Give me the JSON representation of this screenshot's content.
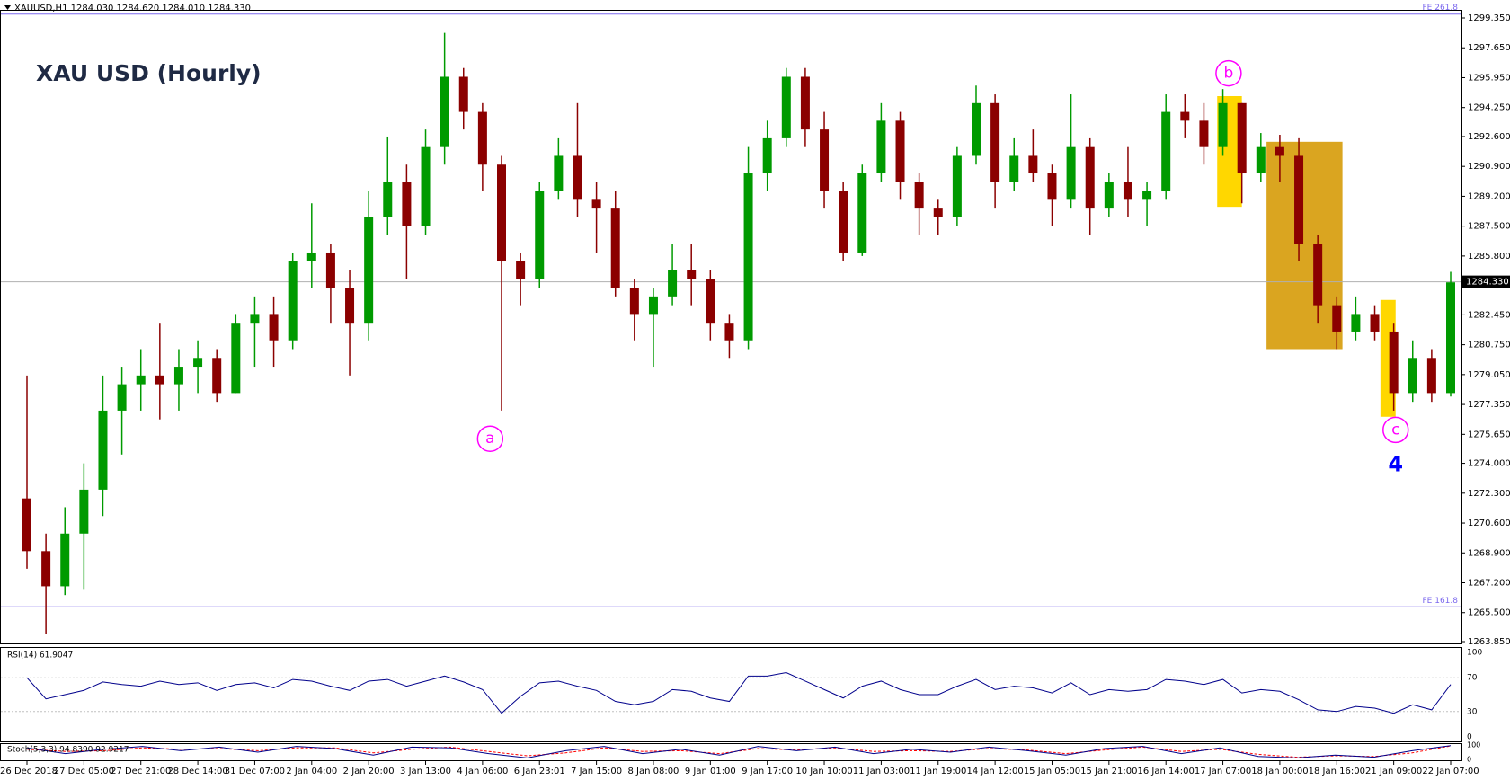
{
  "chart_data": {
    "type": "candlestick",
    "title": "XAU USD (Hourly)",
    "header": "XAUUSD,H1  1284.030 1284.620 1284.010 1284.330",
    "up_color": "#009a00",
    "down_color": "#8b0000",
    "open": [
      1272,
      1269,
      1267,
      1270,
      1272.5,
      1277,
      1278.5,
      1279,
      1278.5,
      1279.5,
      1280,
      1278,
      1282,
      1282.5,
      1281,
      1285.5,
      1286,
      1284,
      1282,
      1288,
      1290,
      1287.5,
      1292,
      1296,
      1294,
      1291,
      1285.5,
      1284.5,
      1289.5,
      1291.5,
      1289,
      1288.5,
      1284,
      1282.5,
      1283.5,
      1285,
      1284.5,
      1282,
      1281,
      1290.5,
      1292.5,
      1296,
      1293,
      1289.5,
      1286,
      1290.5,
      1293.5,
      1290,
      1288.5,
      1288,
      1291.5,
      1294.5,
      1290,
      1291.5,
      1290.5,
      1289,
      1292,
      1288.5,
      1290,
      1289,
      1289.5,
      1294,
      1293.5,
      1292,
      1294.5,
      1290.5,
      1292,
      1291.5,
      1286.5,
      1283,
      1281.5,
      1282.5,
      1281.5,
      1278,
      1280,
      1278
    ],
    "high": [
      1279,
      1270,
      1271.5,
      1274,
      1279,
      1279.5,
      1280.5,
      1282,
      1280.5,
      1281,
      1280.5,
      1282.5,
      1283.5,
      1283.5,
      1286,
      1288.8,
      1286.5,
      1285,
      1289.5,
      1292.6,
      1291,
      1293,
      1298.5,
      1296.5,
      1294.5,
      1291.5,
      1286,
      1290,
      1292.5,
      1294.5,
      1290,
      1289.5,
      1284.5,
      1284,
      1286.5,
      1286.5,
      1285,
      1282.5,
      1292,
      1293.5,
      1296.5,
      1296.5,
      1294,
      1290,
      1291,
      1294.5,
      1294,
      1290.5,
      1289,
      1292,
      1295.5,
      1295,
      1292.5,
      1293,
      1291,
      1295,
      1292.5,
      1290.5,
      1292,
      1290,
      1295,
      1295,
      1294.5,
      1295.3,
      1294.5,
      1292.8,
      1292.7,
      1292.5,
      1287,
      1283.5,
      1283.5,
      1283,
      1282,
      1281,
      1280.5,
      1284.9
    ],
    "low": [
      1268,
      1264.3,
      1266.5,
      1266.8,
      1271,
      1274.5,
      1277,
      1276.5,
      1277,
      1278,
      1277.5,
      1278,
      1279.5,
      1279.5,
      1280.5,
      1284,
      1282,
      1279,
      1281,
      1287,
      1284.5,
      1287,
      1291,
      1293,
      1289.5,
      1277,
      1283,
      1284,
      1289,
      1288,
      1286,
      1283.5,
      1281,
      1279.5,
      1283,
      1283,
      1281,
      1280,
      1280.5,
      1289.5,
      1292,
      1292,
      1288.5,
      1285.5,
      1285.8,
      1290,
      1289,
      1287,
      1287,
      1287.5,
      1291,
      1288.5,
      1289.5,
      1290,
      1287.5,
      1288.5,
      1287,
      1288,
      1288,
      1287.5,
      1289,
      1292.5,
      1291,
      1291.5,
      1288.8,
      1290,
      1290,
      1285.5,
      1282,
      1280.5,
      1281,
      1281,
      1277,
      1277.5,
      1277.5,
      1277.8
    ],
    "close": [
      1269,
      1267,
      1270,
      1272.5,
      1277,
      1278.5,
      1279,
      1278.5,
      1279.5,
      1280,
      1278,
      1282,
      1282.5,
      1281,
      1285.5,
      1286,
      1284,
      1282,
      1288,
      1290,
      1287.5,
      1292,
      1296,
      1294,
      1291,
      1285.5,
      1284.5,
      1289.5,
      1291.5,
      1289,
      1288.5,
      1284,
      1282.5,
      1283.5,
      1285,
      1284.5,
      1282,
      1281,
      1290.5,
      1292.5,
      1296,
      1293,
      1289.5,
      1286,
      1290.5,
      1293.5,
      1290,
      1288.5,
      1288,
      1291.5,
      1294.5,
      1290,
      1291.5,
      1290.5,
      1289,
      1292,
      1288.5,
      1290,
      1289,
      1289.5,
      1294,
      1293.5,
      1292,
      1294.5,
      1290.5,
      1292,
      1291.5,
      1286.5,
      1283,
      1281.5,
      1282.5,
      1281.5,
      1278,
      1280,
      1278,
      1284.3
    ],
    "ylim": [
      1263.85,
      1299.35
    ],
    "yticks": [
      {
        "value": 1299.35,
        "label": "1299.350"
      },
      {
        "value": 1297.65,
        "label": "1297.650"
      },
      {
        "value": 1295.95,
        "label": "1295.950"
      },
      {
        "value": 1294.25,
        "label": "1294.250"
      },
      {
        "value": 1292.6,
        "label": "1292.600"
      },
      {
        "value": 1290.9,
        "label": "1290.900"
      },
      {
        "value": 1289.2,
        "label": "1289.200"
      },
      {
        "value": 1287.5,
        "label": "1287.500"
      },
      {
        "value": 1285.8,
        "label": "1285.800"
      },
      {
        "value": 1282.45,
        "label": "1282.450"
      },
      {
        "value": 1280.75,
        "label": "1280.750"
      },
      {
        "value": 1279.05,
        "label": "1279.050"
      },
      {
        "value": 1277.35,
        "label": "1277.350"
      },
      {
        "value": 1275.65,
        "label": "1275.650"
      },
      {
        "value": 1274,
        "label": "1274.000"
      },
      {
        "value": 1272.3,
        "label": "1272.300"
      },
      {
        "value": 1270.6,
        "label": "1270.600"
      },
      {
        "value": 1268.9,
        "label": "1268.900"
      },
      {
        "value": 1267.2,
        "label": "1267.200"
      },
      {
        "value": 1265.5,
        "label": "1265.500"
      },
      {
        "value": 1263.85,
        "label": "1263.850"
      }
    ],
    "xticks": [
      {
        "value": 0,
        "label": "26 Dec 2018"
      },
      {
        "value": 3,
        "label": "27 Dec 05:00"
      },
      {
        "value": 6,
        "label": "27 Dec 21:00"
      },
      {
        "value": 9,
        "label": "28 Dec 14:00"
      },
      {
        "value": 12,
        "label": "31 Dec 07:00"
      },
      {
        "value": 15,
        "label": "2 Jan 04:00"
      },
      {
        "value": 18,
        "label": "2 Jan 20:00"
      },
      {
        "value": 21,
        "label": "3 Jan 13:00"
      },
      {
        "value": 24,
        "label": "4 Jan 06:00"
      },
      {
        "value": 27,
        "label": "6 Jan 23:01"
      },
      {
        "value": 30,
        "label": "7 Jan 15:00"
      },
      {
        "value": 33,
        "label": "8 Jan 08:00"
      },
      {
        "value": 36,
        "label": "9 Jan 01:00"
      },
      {
        "value": 39,
        "label": "9 Jan 17:00"
      },
      {
        "value": 42,
        "label": "10 Jan 10:00"
      },
      {
        "value": 45,
        "label": "11 Jan 03:00"
      },
      {
        "value": 48,
        "label": "11 Jan 19:00"
      },
      {
        "value": 51,
        "label": "14 Jan 12:00"
      },
      {
        "value": 54,
        "label": "15 Jan 05:00"
      },
      {
        "value": 57,
        "label": "15 Jan 21:00"
      },
      {
        "value": 60,
        "label": "16 Jan 14:00"
      },
      {
        "value": 63,
        "label": "17 Jan 07:00"
      },
      {
        "value": 66,
        "label": "18 Jan 00:00"
      },
      {
        "value": 69,
        "label": "18 Jan 16:00"
      },
      {
        "value": 72,
        "label": "21 Jan 09:00"
      },
      {
        "value": 75,
        "label": "22 Jan 07:00"
      }
    ],
    "last": {
      "value": 1284.33,
      "label": "1284.330"
    },
    "levels": [
      {
        "label": "FE 261.8",
        "value": 1299.57,
        "color": "#7b68ee"
      },
      {
        "label": "FE 161.8",
        "value": 1265.83,
        "color": "#7b68ee"
      }
    ],
    "zones": [
      {
        "from": 62.7,
        "to": 64.0,
        "top": 1294.9,
        "bottom": 1288.6,
        "color": "#ffd700"
      },
      {
        "from": 65.3,
        "to": 69.3,
        "top": 1292.3,
        "bottom": 1280.5,
        "color": "#daa520"
      },
      {
        "from": 71.3,
        "to": 72.1,
        "top": 1283.3,
        "bottom": 1276.65,
        "color": "#ffd700"
      }
    ],
    "annotations": [
      {
        "text": "a",
        "x": 24.4,
        "price": 1275.4,
        "style": "circle",
        "color": "#ff00ff"
      },
      {
        "text": "b",
        "x": 63.3,
        "price": 1296.2,
        "style": "circle",
        "color": "#ff00ff"
      },
      {
        "text": "c",
        "x": 72.1,
        "price": 1275.9,
        "style": "circle",
        "color": "#ff00ff"
      },
      {
        "text": "4",
        "x": 72.1,
        "price": 1273.9,
        "style": "bold",
        "color": "#0000ff"
      }
    ],
    "rsi": {
      "label": "RSI(14) 61.9047",
      "color": "#00008b",
      "ylim": [
        0,
        100
      ],
      "yticks": [
        100,
        70,
        30,
        0
      ],
      "levels": [
        70,
        30
      ],
      "values": [
        70,
        45,
        50,
        55,
        65,
        62,
        60,
        66,
        62,
        64,
        55,
        62,
        64,
        58,
        68,
        66,
        60,
        55,
        66,
        68,
        60,
        66,
        72,
        65,
        56,
        28,
        48,
        64,
        66,
        60,
        55,
        42,
        38,
        42,
        56,
        54,
        46,
        42,
        72,
        72,
        76,
        66,
        56,
        46,
        60,
        66,
        56,
        50,
        50,
        60,
        68,
        56,
        60,
        58,
        52,
        64,
        50,
        56,
        54,
        56,
        68,
        66,
        62,
        68,
        52,
        56,
        54,
        44,
        32,
        30,
        36,
        34,
        28,
        38,
        32,
        62
      ]
    },
    "stoch": {
      "label": "Stoch(5,3,3) 94.8390 92.9217",
      "ylim": [
        0,
        100
      ],
      "yticks": [
        100,
        0
      ],
      "main": {
        "color": "#00008b",
        "values": [
          80,
          40,
          70,
          90,
          60,
          85,
          50,
          90,
          75,
          30,
          85,
          80,
          40,
          10,
          60,
          90,
          40,
          70,
          30,
          90,
          60,
          85,
          40,
          70,
          50,
          85,
          60,
          30,
          75,
          90,
          40,
          80,
          20,
          10,
          30,
          15,
          60,
          95
        ]
      },
      "signal": {
        "color": "#ff0000",
        "values": [
          70,
          55,
          60,
          80,
          70,
          75,
          60,
          80,
          80,
          45,
          70,
          85,
          55,
          25,
          45,
          80,
          55,
          60,
          40,
          75,
          65,
          80,
          55,
          60,
          55,
          75,
          65,
          40,
          65,
          85,
          55,
          70,
          35,
          15,
          25,
          20,
          45,
          93
        ]
      }
    }
  }
}
